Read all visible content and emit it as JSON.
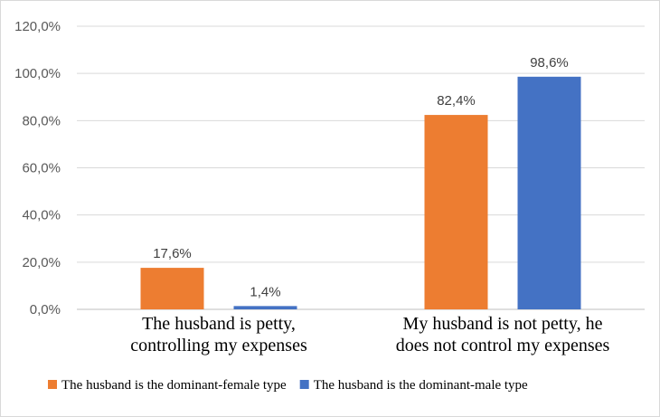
{
  "chart_data": {
    "type": "bar",
    "categories": [
      [
        "The husband is petty,",
        "controlling my expenses"
      ],
      [
        "My husband is not petty, he",
        "does not control my expenses"
      ]
    ],
    "series": [
      {
        "name": "The husband is the dominant-female type",
        "color": "#ED7D31",
        "values": [
          17.6,
          82.4
        ],
        "labels": [
          "17,6%",
          "82,4%"
        ]
      },
      {
        "name": "The husband is the dominant-male type",
        "color": "#4472C4",
        "values": [
          1.4,
          98.6
        ],
        "labels": [
          "1,4%",
          "98,6%"
        ]
      }
    ],
    "ylim": [
      0,
      120
    ],
    "yticks": [
      {
        "value": 0,
        "label": "0,0%"
      },
      {
        "value": 20,
        "label": "20,0%"
      },
      {
        "value": 40,
        "label": "40,0%"
      },
      {
        "value": 60,
        "label": "60,0%"
      },
      {
        "value": 80,
        "label": "80,0%"
      },
      {
        "value": 100,
        "label": "100,0%"
      },
      {
        "value": 120,
        "label": "120,0%"
      }
    ],
    "grid": true,
    "legend_position": "bottom-left"
  }
}
